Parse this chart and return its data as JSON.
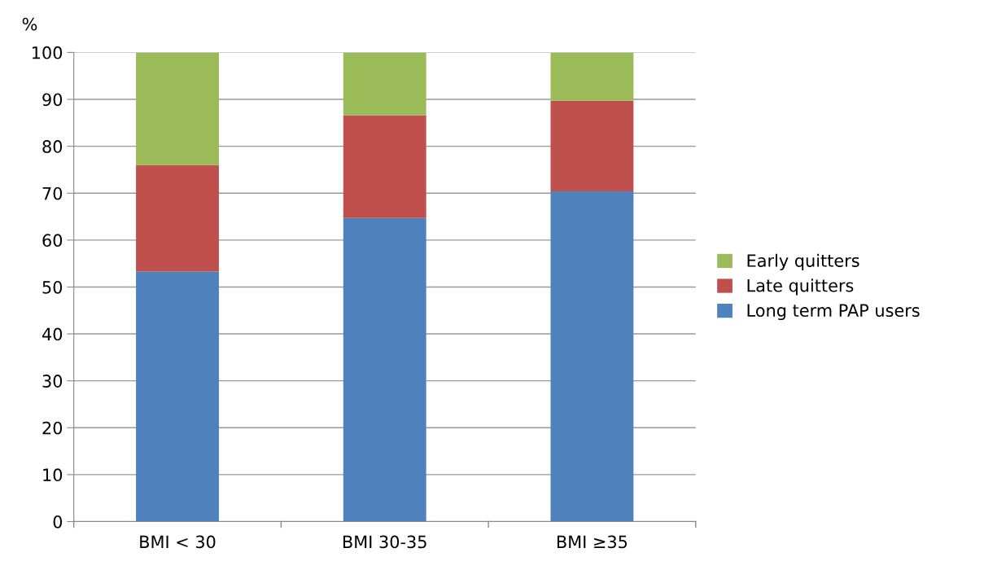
{
  "chart_data": {
    "type": "bar",
    "ylabel": "%",
    "categories": [
      "BMI < 30",
      "BMI 30-35",
      "BMI ≥35"
    ],
    "stacked": true,
    "series": [
      {
        "name": "Long term PAP users",
        "color": "#4f81bd",
        "values": [
          53.3,
          64.7,
          70.4
        ]
      },
      {
        "name": "Late quitters",
        "color": "#c0504d",
        "values": [
          22.7,
          21.9,
          19.3
        ]
      },
      {
        "name": "Early quitters",
        "color": "#9bbb59",
        "values": [
          24.0,
          13.4,
          10.3
        ]
      }
    ],
    "ylim": [
      0,
      100
    ],
    "yticks": [
      0,
      10,
      20,
      30,
      40,
      50,
      60,
      70,
      80,
      90,
      100
    ],
    "grid": "y",
    "legend": "right"
  }
}
